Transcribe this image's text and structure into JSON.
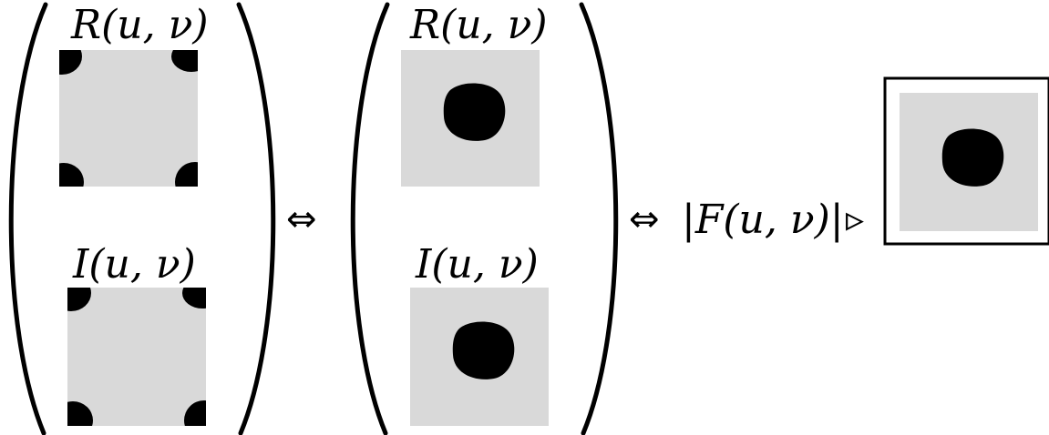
{
  "labels": {
    "r_left": "R(u, ν)",
    "i_left": "I(u, ν)",
    "r_mid": "R(u, ν)",
    "i_mid": "I(u, ν)",
    "magnitude": "|F(u, ν)|"
  },
  "symbols": {
    "iff_1": "⇔",
    "iff_2": "⇔",
    "triangle": "▹"
  },
  "colors": {
    "panel_fill": "#d9d9d9",
    "blob": "#000000",
    "stroke": "#000000"
  }
}
